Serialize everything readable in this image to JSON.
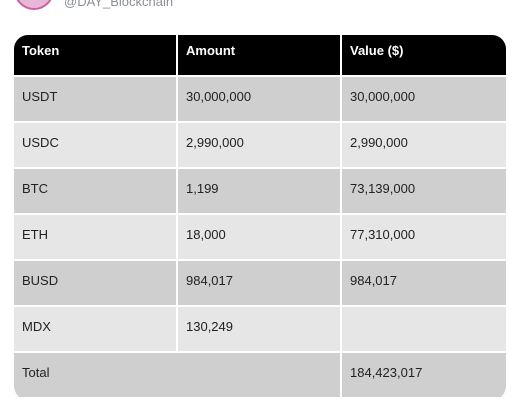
{
  "header": {
    "handle": "@DAY_Blockchain"
  },
  "table": {
    "columns": [
      "Token",
      "Amount",
      "Value ($)"
    ],
    "rows": [
      {
        "token": "USDT",
        "amount": "30,000,000",
        "value": "30,000,000"
      },
      {
        "token": "USDC",
        "amount": "2,990,000",
        "value": "2,990,000"
      },
      {
        "token": "BTC",
        "amount": "1,199",
        "value": "73,139,000"
      },
      {
        "token": "ETH",
        "amount": "18,000",
        "value": "77,310,000"
      },
      {
        "token": "BUSD",
        "amount": "984,017",
        "value": "984,017"
      },
      {
        "token": "MDX",
        "amount": "130,249",
        "value": ""
      }
    ],
    "total": {
      "label": "Total",
      "value": "184,423,017"
    }
  },
  "colors": {
    "header_bg": "#000000",
    "row_dark": "#cfcfcf",
    "row_light": "#e6e6e6"
  }
}
